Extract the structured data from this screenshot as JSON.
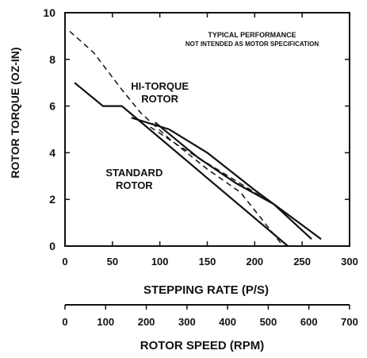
{
  "chart_data": {
    "type": "line",
    "ylabel": "ROTOR TORQUE (OZ-IN)",
    "xlabel": "STEPPING RATE (P/S)",
    "x2label": "ROTOR SPEED (RPM)",
    "note": [
      "TYPICAL PERFORMANCE",
      "NOT INTENDED AS MOTOR SPECIFICATION"
    ],
    "xlim": [
      0,
      300
    ],
    "ylim": [
      0,
      10
    ],
    "x2lim": [
      0,
      700
    ],
    "xticks": [
      0,
      50,
      100,
      150,
      200,
      250,
      300
    ],
    "yticks": [
      0,
      2,
      4,
      6,
      8,
      10
    ],
    "x2ticks": [
      0,
      100,
      200,
      300,
      400,
      500,
      600,
      700
    ],
    "grid": false,
    "annotations": [
      {
        "lines": [
          "HI-TORQUE",
          "ROTOR"
        ],
        "x": 100,
        "y": 6.7
      },
      {
        "lines": [
          "STANDARD",
          "ROTOR"
        ],
        "x": 73,
        "y": 3.0
      }
    ],
    "series": [
      {
        "style": "solid",
        "values": [
          [
            10,
            7.0
          ],
          [
            40,
            6.0
          ],
          [
            60,
            6.0
          ],
          [
            235,
            0.0
          ]
        ]
      },
      {
        "style": "dashed",
        "values": [
          [
            5,
            9.2
          ],
          [
            30,
            8.3
          ],
          [
            60,
            6.7
          ],
          [
            80,
            5.7
          ],
          [
            110,
            4.6
          ],
          [
            150,
            3.3
          ],
          [
            185,
            2.3
          ],
          [
            230,
            0.0
          ]
        ]
      },
      {
        "style": "solid",
        "values": [
          [
            70,
            5.5
          ],
          [
            110,
            5.0
          ],
          [
            150,
            4.0
          ],
          [
            200,
            2.4
          ],
          [
            270,
            0.3
          ]
        ]
      },
      {
        "style": "dashed",
        "values": [
          [
            90,
            5.1
          ],
          [
            120,
            4.3
          ],
          [
            160,
            3.3
          ],
          [
            200,
            2.3
          ],
          [
            220,
            1.8
          ]
        ]
      },
      {
        "style": "solid",
        "values": [
          [
            95,
            5.3
          ],
          [
            140,
            3.8
          ],
          [
            180,
            2.7
          ],
          [
            220,
            1.8
          ],
          [
            260,
            0.3
          ]
        ]
      }
    ]
  }
}
